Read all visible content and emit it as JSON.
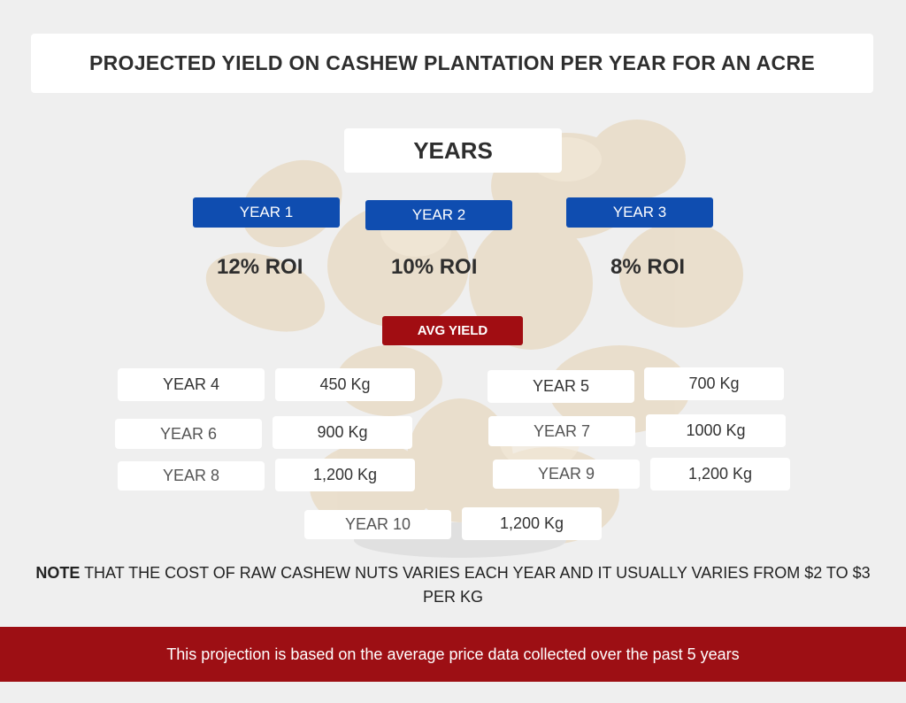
{
  "title": "PROJECTED YIELD ON CASHEW PLANTATION PER YEAR FOR AN ACRE",
  "years_heading": "YEARS",
  "roi_years": [
    {
      "label": "YEAR 1",
      "roi": "12% ROI"
    },
    {
      "label": "YEAR 2",
      "roi": "10% ROI"
    },
    {
      "label": "YEAR 3",
      "roi": "8% ROI"
    }
  ],
  "avg_yield_label": "AVG YIELD",
  "yield_rows": [
    {
      "year": "YEAR 4",
      "yield": "450 Kg"
    },
    {
      "year": "YEAR 5",
      "yield": "700 Kg"
    },
    {
      "year": "YEAR 6",
      "yield": "900 Kg"
    },
    {
      "year": "YEAR 7",
      "yield": "1000 Kg"
    },
    {
      "year": "YEAR 8",
      "yield": "1,200 Kg"
    },
    {
      "year": "YEAR 9",
      "yield": "1,200 Kg"
    },
    {
      "year": "YEAR 10",
      "yield": "1,200 Kg"
    }
  ],
  "note": {
    "bold": "NOTE",
    "text": " THAT THE COST OF RAW CASHEW NUTS VARIES EACH YEAR AND IT USUALLY VARIES FROM $2 TO $3 PER KG"
  },
  "footer": "This  projection is based on the average price data collected over the past 5 years",
  "colors": {
    "background": "#efefef",
    "year_box_blue": "#0f4db0",
    "avg_yield_red": "#a10d12",
    "footer_red": "#9d0f14"
  },
  "background_image": "cashew-nuts-photo"
}
